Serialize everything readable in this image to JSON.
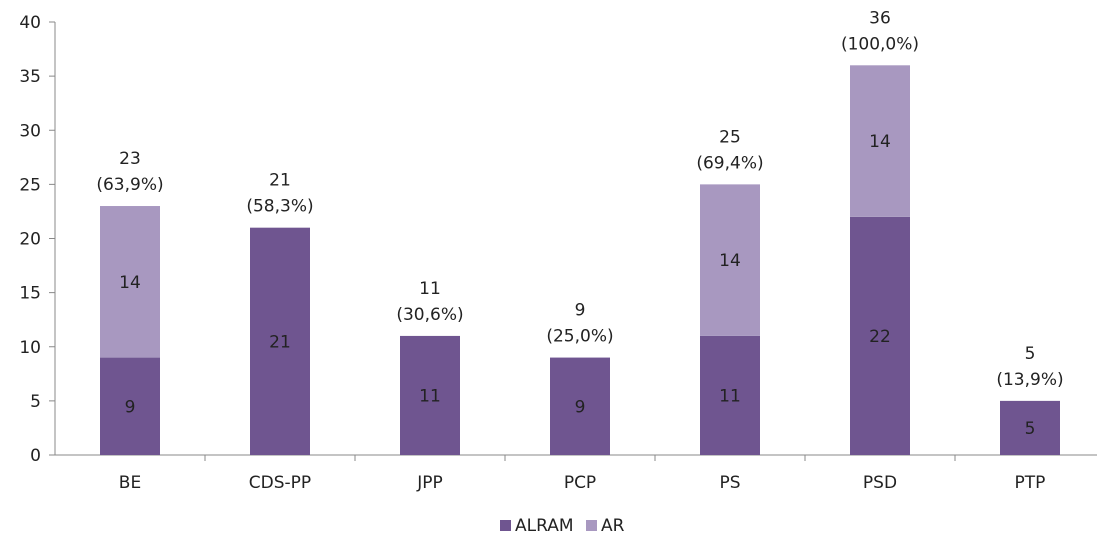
{
  "chart_data": {
    "type": "bar",
    "stacked": true,
    "categories": [
      "BE",
      "CDS-PP",
      "JPP",
      "PCP",
      "PS",
      "PSD",
      "PTP"
    ],
    "series": [
      {
        "name": "ALRAM",
        "values": [
          9,
          21,
          11,
          9,
          11,
          22,
          5
        ],
        "color": "#6f5590"
      },
      {
        "name": "AR",
        "values": [
          14,
          0,
          0,
          0,
          14,
          14,
          0
        ],
        "color": "#a898c0"
      }
    ],
    "totals": [
      23,
      21,
      11,
      9,
      25,
      36,
      5
    ],
    "total_pct_labels": [
      "(63,9%)",
      "(58,3%)",
      "(30,6%)",
      "(25,0%)",
      "(69,4%)",
      "(100,0%)",
      "(13,9%)"
    ],
    "ylim": [
      0,
      40
    ],
    "yticks": [
      0,
      5,
      10,
      15,
      20,
      25,
      30,
      35,
      40
    ],
    "grid": false,
    "legend_position": "bottom-center",
    "title": "",
    "xlabel": "",
    "ylabel": ""
  }
}
